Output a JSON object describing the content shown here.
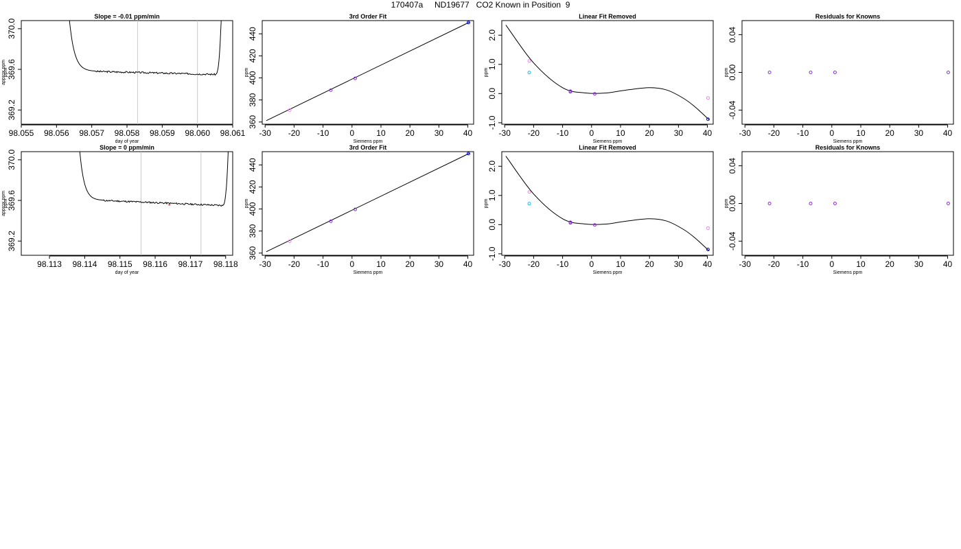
{
  "main_title": "170407a     ND19677   CO2 Known in Position  9",
  "colors": {
    "line": "#000000",
    "pink": "#ee82ee",
    "purple": "#8a2be2",
    "blue": "#0000ff",
    "cyan": "#00bfff",
    "vline": "#c8c8c8"
  },
  "chart_data": [
    {
      "type": "line",
      "title": "Slope =  -0.01  ppm/min",
      "xlabel": "day of year",
      "ylabel": "ppm",
      "ylabel_overlap": "approx ppm",
      "xlim": [
        98.055,
        98.061
      ],
      "ylim": [
        369.06,
        370.08
      ],
      "xticks": [
        "98.055",
        "98.056",
        "98.057",
        "98.058",
        "98.059",
        "98.060",
        "98.061"
      ],
      "yticks": [
        "369.2",
        "369.6",
        "370.0"
      ],
      "vlines": [
        98.0583,
        98.06
      ],
      "trace": {
        "left": 98.0563,
        "right": 98.0607,
        "flat_start": 98.0571,
        "flat_end": 98.0605,
        "level_start": 369.58,
        "level_end": 369.55,
        "noise": 0.008,
        "seed": 3
      },
      "marker": {
        "x": 98.0592,
        "y": 369.555
      }
    },
    {
      "type": "scatter",
      "title": "3rd Order Fit",
      "xlabel": "Siemens ppm",
      "ylabel": "ppm",
      "xlim": [
        -31,
        42
      ],
      "ylim": [
        358,
        452
      ],
      "xticks": [
        "-30",
        "-20",
        "-10",
        "0",
        "10",
        "20",
        "30",
        "40"
      ],
      "yticks": [
        "360",
        "380",
        "400",
        "420",
        "440"
      ],
      "curve": {
        "x": [
          -29.6,
          40.6
        ],
        "y": [
          361.2,
          450.6
        ]
      },
      "points": [
        {
          "x": -21.5,
          "y": 370.8,
          "c": "pink"
        },
        {
          "x": -7.3,
          "y": 388.9,
          "c": "purple"
        },
        {
          "x": 1.1,
          "y": 399.6,
          "c": "purple"
        },
        {
          "x": 40.2,
          "y": 450.2,
          "c": "blue"
        }
      ]
    },
    {
      "type": "scatter",
      "title": "Linear Fit Removed",
      "xlabel": "Siemens ppm",
      "ylabel": "ppm",
      "xlim": [
        -31,
        42
      ],
      "ylim": [
        -1.05,
        2.5
      ],
      "xticks": [
        "-30",
        "-20",
        "-10",
        "0",
        "10",
        "20",
        "30",
        "40"
      ],
      "yticks": [
        "-1.0",
        "0.0",
        "1.0",
        "2.0"
      ],
      "curve": {
        "x": [
          -29.6,
          -20,
          -10,
          -2,
          5,
          12,
          20,
          26,
          32,
          36,
          40.6
        ],
        "y": [
          2.35,
          1.05,
          0.2,
          0.02,
          0.02,
          0.12,
          0.2,
          0.12,
          -0.18,
          -0.48,
          -0.9
        ]
      },
      "points": [
        {
          "x": -21.5,
          "y": 1.12,
          "c": "pink"
        },
        {
          "x": -21.5,
          "y": 0.72,
          "c": "cyan"
        },
        {
          "x": -7.3,
          "y": 0.08,
          "c": "purple"
        },
        {
          "x": -7.3,
          "y": 0.06,
          "c": "purple"
        },
        {
          "x": 1.1,
          "y": -0.01,
          "c": "purple"
        },
        {
          "x": 40.2,
          "y": -0.15,
          "c": "pink"
        },
        {
          "x": 40.2,
          "y": -0.88,
          "c": "blue"
        }
      ]
    },
    {
      "type": "scatter",
      "title": "Residuals for Knowns",
      "xlabel": "Siemens ppm",
      "ylabel": "ppm",
      "xlim": [
        -31,
        42
      ],
      "ylim": [
        -0.055,
        0.055
      ],
      "xticks": [
        "-30",
        "-20",
        "-10",
        "0",
        "10",
        "20",
        "30",
        "40"
      ],
      "yticks": [
        "-0.04",
        "0.00",
        "0.04"
      ],
      "points": [
        {
          "x": -21.5,
          "y": 0,
          "c": "purple"
        },
        {
          "x": -7.3,
          "y": 0,
          "c": "purple"
        },
        {
          "x": 1.1,
          "y": 0,
          "c": "purple"
        },
        {
          "x": 40.2,
          "y": 0,
          "c": "purple"
        }
      ]
    },
    {
      "type": "line",
      "title": "Slope =  0  ppm/min",
      "xlabel": "day of year",
      "ylabel": "ppm",
      "ylabel_overlap": "approx ppm",
      "xlim": [
        98.1122,
        98.1182
      ],
      "ylim": [
        369.06,
        370.08
      ],
      "xticks": [
        "98.113",
        "98.114",
        "98.115",
        "98.116",
        "98.117",
        "98.118"
      ],
      "yticks": [
        "369.2",
        "369.6",
        "370.0"
      ],
      "vlines": [
        98.1156,
        98.1173
      ],
      "trace": {
        "left": 98.1138,
        "right": 98.1181,
        "flat_start": 98.1145,
        "flat_end": 98.1179,
        "level_start": 369.6,
        "level_end": 369.55,
        "noise": 0.008,
        "seed": 11
      },
      "marker": {
        "x": 98.1164,
        "y": 369.555
      }
    },
    {
      "type": "scatter",
      "title": "3rd Order Fit",
      "xlabel": "Siemens ppm",
      "ylabel": "ppm",
      "xlim": [
        -31,
        42
      ],
      "ylim": [
        358,
        452
      ],
      "xticks": [
        "-30",
        "-20",
        "-10",
        "0",
        "10",
        "20",
        "30",
        "40"
      ],
      "yticks": [
        "360",
        "380",
        "400",
        "420",
        "440"
      ],
      "curve": {
        "x": [
          -29.6,
          40.6
        ],
        "y": [
          361.2,
          450.6
        ]
      },
      "points": [
        {
          "x": -21.5,
          "y": 370.8,
          "c": "pink"
        },
        {
          "x": -7.3,
          "y": 388.9,
          "c": "purple"
        },
        {
          "x": 1.1,
          "y": 399.6,
          "c": "purple"
        },
        {
          "x": 40.2,
          "y": 450.2,
          "c": "blue"
        }
      ]
    },
    {
      "type": "scatter",
      "title": "Linear Fit Removed",
      "xlabel": "Siemens ppm",
      "ylabel": "ppm",
      "xlim": [
        -31,
        42
      ],
      "ylim": [
        -1.05,
        2.5
      ],
      "xticks": [
        "-30",
        "-20",
        "-10",
        "0",
        "10",
        "20",
        "30",
        "40"
      ],
      "yticks": [
        "-1.0",
        "0.0",
        "1.0",
        "2.0"
      ],
      "curve": {
        "x": [
          -29.6,
          -20,
          -10,
          -2,
          5,
          12,
          20,
          26,
          32,
          36,
          40.6
        ],
        "y": [
          2.35,
          1.05,
          0.2,
          0.02,
          0.02,
          0.12,
          0.2,
          0.12,
          -0.18,
          -0.48,
          -0.9
        ]
      },
      "points": [
        {
          "x": -21.5,
          "y": 1.12,
          "c": "pink"
        },
        {
          "x": -21.5,
          "y": 0.72,
          "c": "cyan"
        },
        {
          "x": -7.3,
          "y": 0.08,
          "c": "purple"
        },
        {
          "x": -7.3,
          "y": 0.06,
          "c": "purple"
        },
        {
          "x": 1.1,
          "y": -0.01,
          "c": "purple"
        },
        {
          "x": 40.2,
          "y": -0.12,
          "c": "pink"
        },
        {
          "x": 40.2,
          "y": -0.85,
          "c": "blue"
        }
      ]
    },
    {
      "type": "scatter",
      "title": "Residuals for Knowns",
      "xlabel": "Siemens ppm",
      "ylabel": "ppm",
      "xlim": [
        -31,
        42
      ],
      "ylim": [
        -0.055,
        0.055
      ],
      "xticks": [
        "-30",
        "-20",
        "-10",
        "0",
        "10",
        "20",
        "30",
        "40"
      ],
      "yticks": [
        "-0.04",
        "0.00",
        "0.04"
      ],
      "points": [
        {
          "x": -21.5,
          "y": 0,
          "c": "purple"
        },
        {
          "x": -7.3,
          "y": 0,
          "c": "purple"
        },
        {
          "x": 1.1,
          "y": 0,
          "c": "purple"
        },
        {
          "x": 40.2,
          "y": 0,
          "c": "purple"
        }
      ]
    }
  ]
}
